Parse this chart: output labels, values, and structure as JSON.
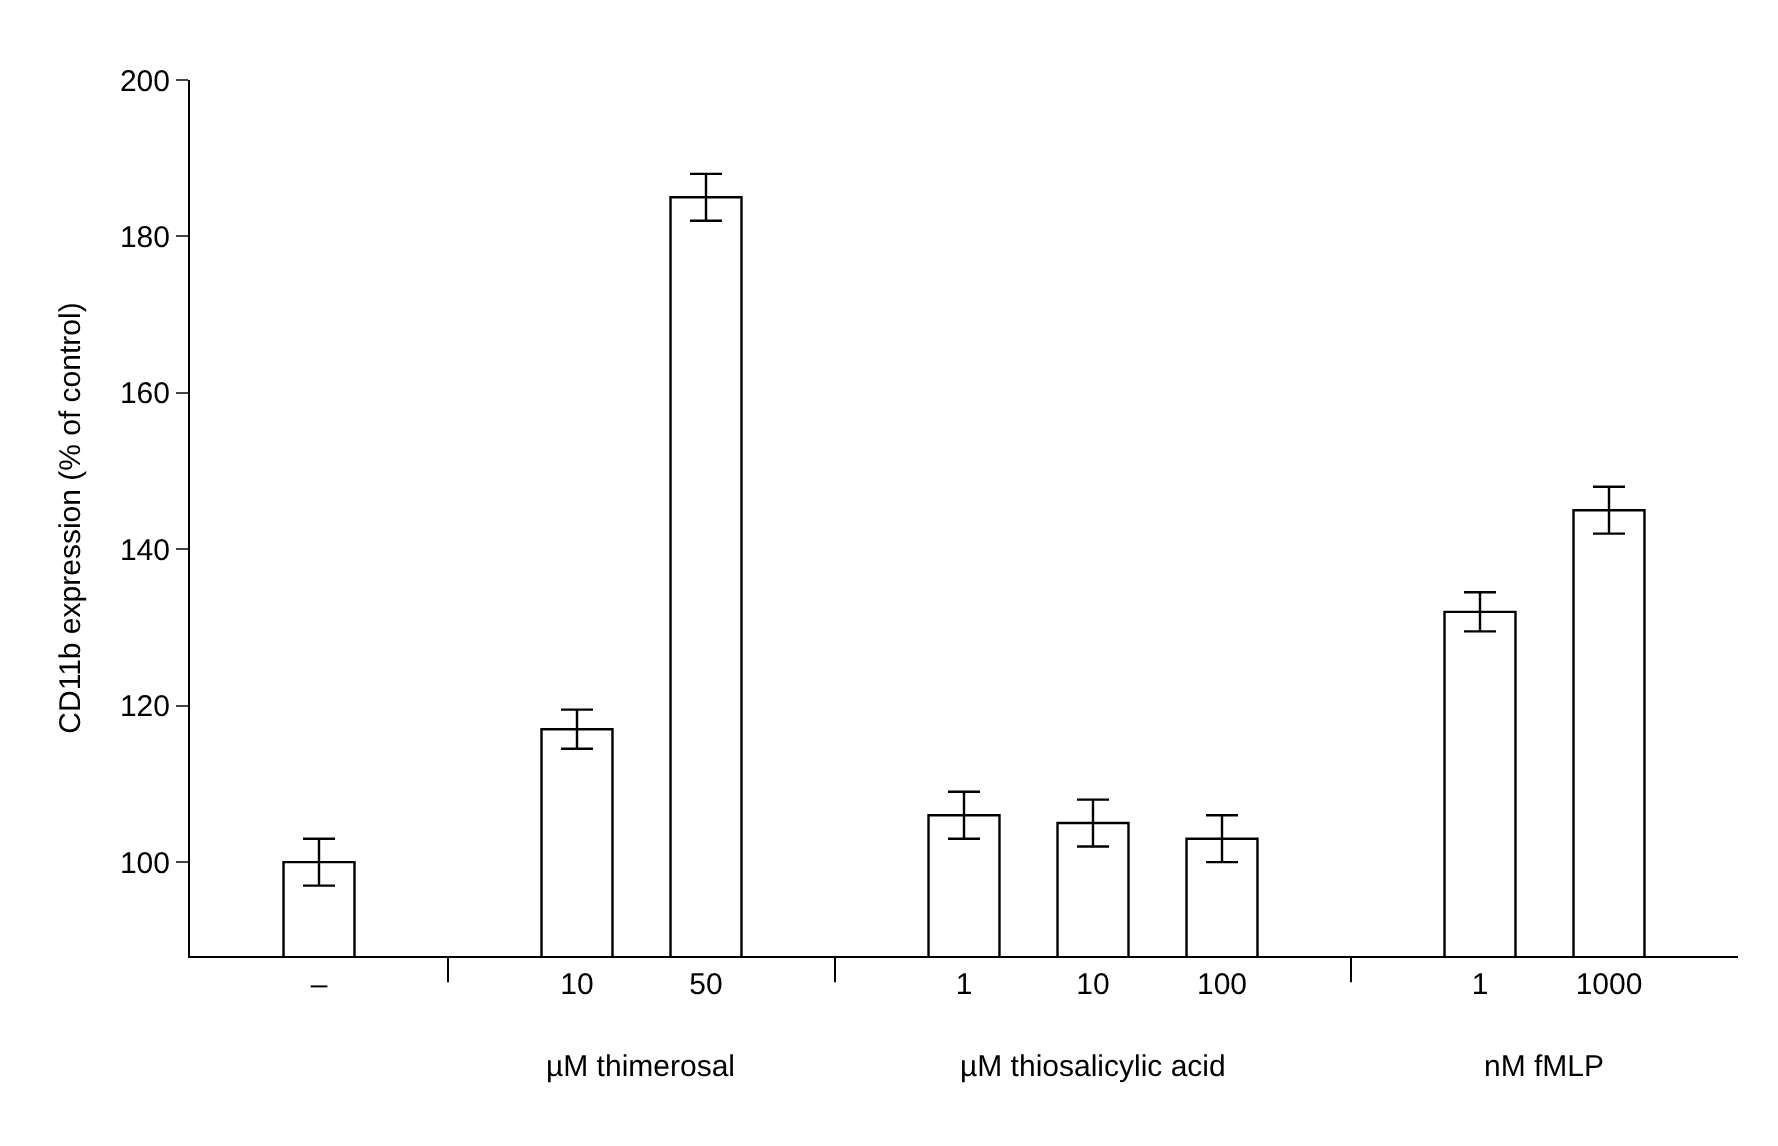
{
  "chart_data": {
    "type": "bar",
    "ylabel": "CD11b expression (% of control)",
    "categories": [
      "–",
      null,
      "10",
      "50",
      null,
      "1",
      "10",
      "100",
      null,
      "1",
      "1000"
    ],
    "values": [
      100,
      null,
      117,
      185,
      null,
      106,
      105,
      103,
      null,
      132,
      145
    ],
    "errors": [
      3,
      null,
      2.5,
      3,
      null,
      3,
      3,
      3,
      null,
      2.5,
      3
    ],
    "color": "#ffffff",
    "ylim": [
      88,
      200
    ],
    "yticks": [
      100,
      120,
      140,
      160,
      180,
      200
    ],
    "annotations": [
      "µM thimerosal",
      "µM thiosalicylic acid",
      "nM fMLP"
    ]
  }
}
